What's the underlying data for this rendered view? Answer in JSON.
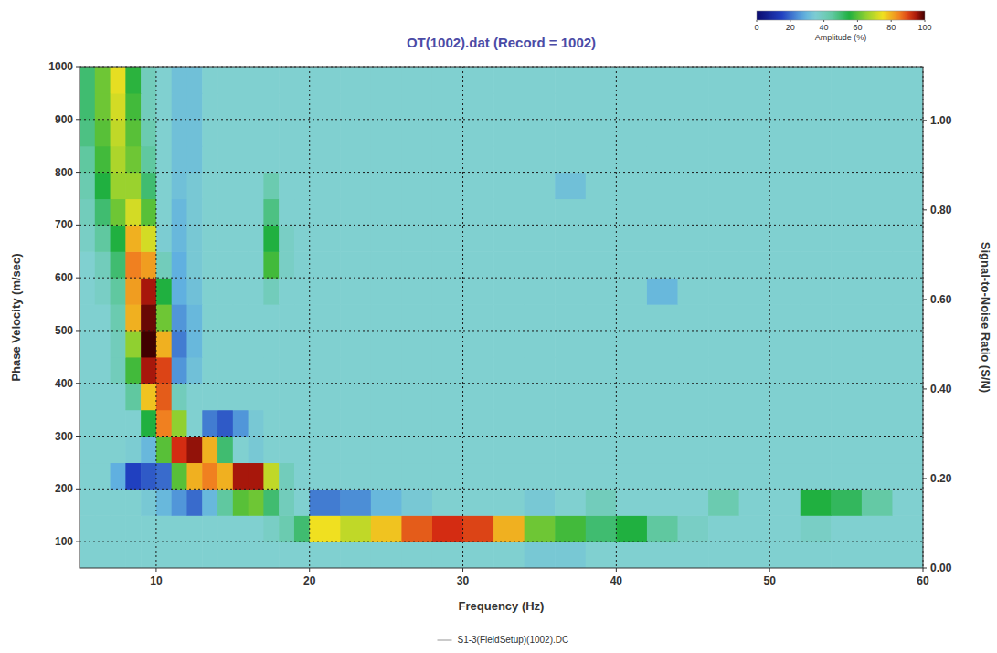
{
  "chart_data": {
    "type": "heatmap",
    "title": "OT(1002).dat (Record = 1002)",
    "x_label": "Frequency (Hz)",
    "y_label": "Phase Velocity (m/sec)",
    "y2_label": "Signal-to-Noise Ratio (S/N)",
    "xlim": [
      5,
      60
    ],
    "xticks": [
      10,
      20,
      30,
      40,
      50,
      60
    ],
    "ylim": [
      50,
      1000
    ],
    "yticks": [
      100,
      200,
      300,
      400,
      500,
      600,
      700,
      800,
      900,
      1000
    ],
    "y2lim": [
      0,
      1.12
    ],
    "y2ticks": [
      {
        "value": 0,
        "label": "0.00"
      },
      {
        "value": 0.2,
        "label": "0.20"
      },
      {
        "value": 0.4,
        "label": "0.40"
      },
      {
        "value": 0.6,
        "label": "0.60"
      },
      {
        "value": 0.8,
        "label": "0.80"
      },
      {
        "value": 1,
        "label": "1.00"
      }
    ],
    "grid": true,
    "x_bins": [
      5,
      6,
      7,
      8,
      9,
      10,
      11,
      12,
      13,
      14,
      15,
      16,
      17,
      18,
      19,
      20,
      22,
      24,
      26,
      28,
      30,
      32,
      34,
      36,
      38,
      40,
      42,
      44,
      46,
      48,
      50,
      52,
      54,
      56,
      58,
      60
    ],
    "y_bins": [
      50,
      100,
      150,
      200,
      250,
      300,
      350,
      400,
      450,
      500,
      550,
      600,
      650,
      700,
      750,
      800,
      850,
      900,
      950,
      1000
    ],
    "cells": [
      [
        36,
        36,
        36,
        36,
        36,
        36,
        36,
        36,
        36,
        36,
        36,
        36,
        36,
        36,
        36,
        36,
        36,
        36,
        36,
        36,
        36,
        36,
        34,
        34,
        36,
        36,
        36,
        36,
        36,
        36,
        36,
        36,
        36,
        36,
        36
      ],
      [
        36,
        36,
        36,
        36,
        36,
        36,
        36,
        36,
        36,
        36,
        36,
        36,
        38,
        42,
        50,
        75,
        70,
        78,
        88,
        92,
        90,
        80,
        62,
        58,
        50,
        55,
        45,
        38,
        36,
        36,
        36,
        38,
        36,
        36,
        36
      ],
      [
        36,
        36,
        36,
        36,
        34,
        30,
        25,
        20,
        30,
        45,
        60,
        62,
        50,
        40,
        36,
        22,
        24,
        30,
        34,
        36,
        36,
        36,
        34,
        36,
        40,
        36,
        36,
        36,
        42,
        36,
        36,
        55,
        52,
        44,
        36
      ],
      [
        36,
        36,
        28,
        15,
        18,
        20,
        60,
        80,
        85,
        80,
        95,
        95,
        70,
        40,
        36,
        36,
        36,
        36,
        36,
        36,
        36,
        36,
        36,
        36,
        36,
        36,
        36,
        36,
        36,
        36,
        36,
        36,
        36,
        36,
        36
      ],
      [
        36,
        36,
        36,
        35,
        30,
        60,
        92,
        96,
        80,
        50,
        36,
        34,
        36,
        36,
        36,
        36,
        36,
        36,
        36,
        36,
        36,
        36,
        36,
        36,
        36,
        36,
        36,
        36,
        36,
        36,
        36,
        36,
        36,
        36,
        36
      ],
      [
        36,
        36,
        36,
        36,
        55,
        85,
        65,
        36,
        22,
        18,
        25,
        34,
        36,
        36,
        36,
        36,
        36,
        36,
        36,
        36,
        36,
        36,
        36,
        36,
        36,
        36,
        36,
        36,
        36,
        36,
        36,
        36,
        36,
        36,
        36
      ],
      [
        36,
        36,
        36,
        45,
        78,
        88,
        40,
        36,
        36,
        36,
        36,
        36,
        36,
        36,
        36,
        36,
        36,
        36,
        36,
        36,
        36,
        36,
        36,
        36,
        36,
        36,
        36,
        36,
        36,
        36,
        36,
        36,
        36,
        36,
        36
      ],
      [
        36,
        36,
        40,
        58,
        95,
        90,
        25,
        32,
        36,
        36,
        36,
        36,
        36,
        36,
        36,
        36,
        36,
        36,
        36,
        36,
        36,
        36,
        36,
        36,
        36,
        36,
        36,
        36,
        36,
        36,
        36,
        36,
        36,
        36,
        36
      ],
      [
        36,
        36,
        40,
        65,
        100,
        80,
        22,
        30,
        36,
        36,
        36,
        36,
        36,
        36,
        36,
        36,
        36,
        36,
        36,
        36,
        36,
        36,
        36,
        36,
        36,
        36,
        36,
        36,
        36,
        36,
        36,
        36,
        36,
        36,
        36
      ],
      [
        36,
        36,
        42,
        80,
        98,
        62,
        25,
        30,
        36,
        36,
        36,
        36,
        36,
        36,
        36,
        36,
        36,
        36,
        36,
        36,
        36,
        36,
        36,
        36,
        36,
        36,
        36,
        36,
        36,
        36,
        36,
        36,
        36,
        36,
        36
      ],
      [
        36,
        38,
        45,
        82,
        95,
        55,
        28,
        32,
        36,
        36,
        36,
        36,
        40,
        36,
        36,
        36,
        36,
        36,
        36,
        36,
        36,
        36,
        36,
        36,
        36,
        36,
        30,
        36,
        36,
        36,
        36,
        36,
        36,
        36,
        36
      ],
      [
        36,
        40,
        50,
        85,
        82,
        40,
        28,
        34,
        36,
        36,
        36,
        36,
        58,
        38,
        36,
        36,
        36,
        36,
        36,
        36,
        36,
        36,
        36,
        36,
        36,
        36,
        36,
        36,
        36,
        36,
        36,
        36,
        36,
        36,
        36
      ],
      [
        38,
        45,
        55,
        80,
        72,
        35,
        30,
        34,
        36,
        36,
        36,
        36,
        55,
        38,
        36,
        36,
        36,
        36,
        36,
        36,
        36,
        36,
        36,
        36,
        36,
        36,
        36,
        36,
        36,
        36,
        36,
        36,
        36,
        36,
        36
      ],
      [
        40,
        50,
        62,
        72,
        60,
        36,
        30,
        34,
        36,
        36,
        36,
        36,
        48,
        36,
        36,
        36,
        36,
        36,
        36,
        36,
        36,
        36,
        36,
        36,
        36,
        36,
        36,
        36,
        36,
        36,
        36,
        36,
        36,
        36,
        36
      ],
      [
        42,
        55,
        66,
        66,
        50,
        36,
        32,
        34,
        36,
        36,
        36,
        36,
        42,
        36,
        36,
        36,
        36,
        36,
        36,
        36,
        36,
        36,
        36,
        32,
        36,
        36,
        36,
        36,
        36,
        36,
        36,
        36,
        36,
        36,
        36
      ],
      [
        45,
        58,
        68,
        62,
        45,
        36,
        32,
        32,
        36,
        36,
        36,
        36,
        36,
        36,
        36,
        36,
        36,
        36,
        36,
        36,
        36,
        36,
        36,
        36,
        36,
        36,
        36,
        36,
        36,
        36,
        36,
        36,
        36,
        36,
        36
      ],
      [
        48,
        60,
        70,
        60,
        42,
        36,
        32,
        32,
        36,
        36,
        36,
        36,
        36,
        36,
        36,
        36,
        36,
        36,
        36,
        36,
        36,
        36,
        36,
        36,
        36,
        36,
        36,
        36,
        36,
        36,
        36,
        36,
        36,
        36,
        36
      ],
      [
        50,
        62,
        72,
        58,
        40,
        36,
        32,
        32,
        36,
        36,
        36,
        36,
        36,
        36,
        36,
        36,
        36,
        36,
        36,
        36,
        36,
        36,
        36,
        36,
        36,
        36,
        36,
        36,
        36,
        36,
        36,
        36,
        36,
        36,
        36
      ],
      [
        50,
        62,
        74,
        56,
        40,
        36,
        32,
        32,
        36,
        36,
        36,
        36,
        36,
        36,
        36,
        36,
        36,
        36,
        36,
        36,
        36,
        36,
        36,
        36,
        36,
        36,
        36,
        36,
        36,
        36,
        36,
        36,
        36,
        36,
        36
      ]
    ],
    "colorbar": {
      "label": "Amplitude (%)",
      "range": [
        0,
        100
      ],
      "ticks": [
        0,
        20,
        40,
        60,
        80,
        100
      ]
    },
    "series": [
      {
        "name": "S1-3(FieldSetup)(1002).DC",
        "color": "#b8b8b8",
        "values": []
      }
    ],
    "legend": "bottom"
  }
}
